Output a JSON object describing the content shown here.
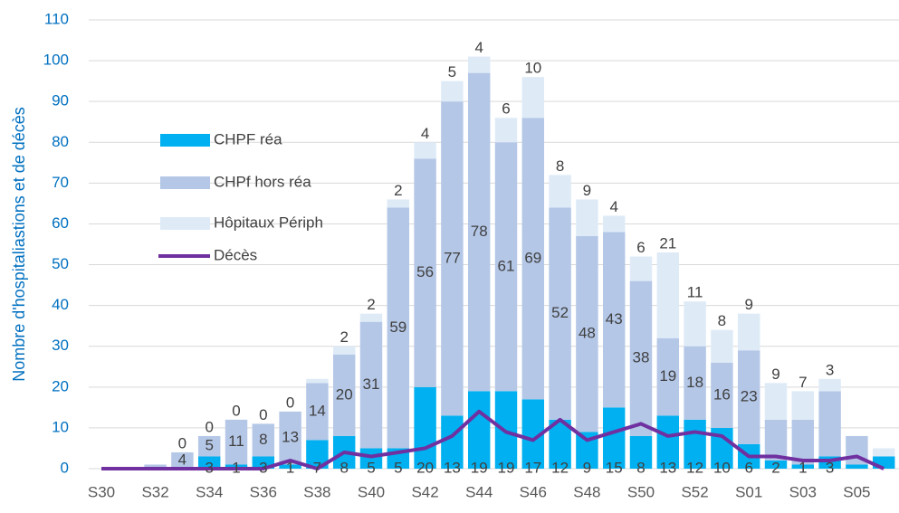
{
  "chart_data": {
    "type": "stacked-bar-line",
    "y_label": "Nombre d'hospitaliastions et de décès",
    "categories": [
      "S30",
      null,
      "S32",
      null,
      "S34",
      null,
      "S36",
      null,
      "S38",
      null,
      "S40",
      null,
      "S42",
      null,
      "S44",
      null,
      "S46",
      null,
      "S48",
      null,
      "S50",
      null,
      "S52",
      null,
      "S01",
      null,
      "S03",
      null,
      "S05",
      null
    ],
    "ylim": [
      0,
      110
    ],
    "yticks": [
      0,
      10,
      20,
      30,
      40,
      50,
      60,
      70,
      80,
      90,
      100,
      110
    ],
    "grid": true,
    "series": [
      {
        "name": "CHPF réa",
        "color": "#00b0f0",
        "values": [
          0,
          0,
          0,
          0,
          3,
          1,
          3,
          1,
          7,
          8,
          5,
          5,
          20,
          13,
          19,
          19,
          17,
          12,
          9,
          15,
          8,
          13,
          12,
          10,
          6,
          2,
          1,
          3,
          1,
          3
        ],
        "value_labels": [
          null,
          null,
          null,
          null,
          "3",
          "1",
          "3",
          "1",
          "7",
          "8",
          "5",
          "5",
          "20",
          "13",
          "19",
          "19",
          "17",
          "12",
          "9",
          "15",
          "8",
          "13",
          "12",
          "10",
          "6",
          "2",
          "1",
          "3",
          null,
          null
        ]
      },
      {
        "name": "CHPf hors réa",
        "color": "#b4c7e7",
        "values": [
          0,
          0,
          1,
          4,
          5,
          11,
          8,
          13,
          14,
          20,
          31,
          59,
          56,
          77,
          78,
          61,
          69,
          52,
          48,
          43,
          38,
          19,
          18,
          16,
          23,
          10,
          11,
          16,
          7,
          0
        ],
        "value_labels": [
          null,
          null,
          null,
          "4",
          "5",
          "11",
          "8",
          "13",
          "14",
          "20",
          "31",
          "59",
          "56",
          "77",
          "78",
          "61",
          "69",
          "52",
          "48",
          "43",
          "38",
          "19",
          "18",
          "16",
          "23",
          null,
          null,
          null,
          null,
          null
        ]
      },
      {
        "name": "Hôpitaux Périph",
        "color": "#deebf7",
        "values": [
          0,
          0,
          0,
          0,
          0,
          0,
          0,
          0,
          1,
          2,
          2,
          2,
          4,
          5,
          4,
          6,
          10,
          8,
          9,
          4,
          6,
          21,
          11,
          8,
          9,
          9,
          7,
          3,
          0,
          2
        ],
        "value_labels": [
          null,
          null,
          null,
          "0",
          "0",
          "0",
          "0",
          "0",
          null,
          "2",
          "2",
          "2",
          "4",
          "5",
          "4",
          "6",
          "10",
          "8",
          "9",
          "4",
          "6",
          "21",
          "11",
          "8",
          "9",
          "9",
          "7",
          "3",
          null,
          null
        ]
      },
      {
        "name": "Décès",
        "color": "#7030a0",
        "line": true,
        "values": [
          0,
          0,
          0,
          0,
          0,
          0,
          0,
          2,
          0,
          4,
          3,
          4,
          5,
          8,
          14,
          9,
          7,
          12,
          7,
          9,
          11,
          8,
          9,
          8,
          3,
          3,
          2,
          2,
          3,
          0
        ]
      }
    ]
  }
}
